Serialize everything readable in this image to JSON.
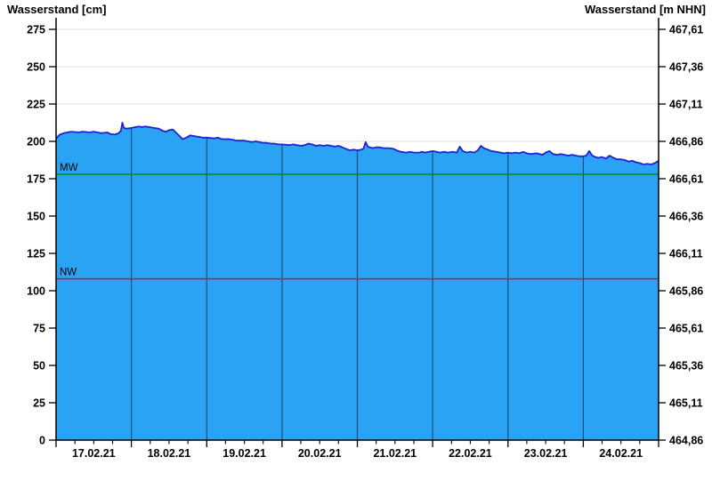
{
  "chart_data": {
    "type": "area",
    "title_left_axis": "Wasserstand [cm]",
    "title_right_axis": "Wasserstand [m NHN]",
    "x_days": 8,
    "x_minor_ticks_per_day": 4,
    "x_tick_labels": [
      "17.02.21",
      "18.02.21",
      "19.02.21",
      "20.02.21",
      "21.02.21",
      "22.02.21",
      "23.02.21",
      "24.02.21"
    ],
    "y_left": {
      "min": 0,
      "max": 275,
      "step": 25,
      "unit": "cm",
      "labels": [
        "0",
        "25",
        "50",
        "75",
        "100",
        "125",
        "150",
        "175",
        "200",
        "225",
        "250",
        "275"
      ]
    },
    "y_right_labels": [
      {
        "cm": 0,
        "label": "464,86"
      },
      {
        "cm": 25,
        "label": "465,11"
      },
      {
        "cm": 50,
        "label": "465,36"
      },
      {
        "cm": 75,
        "label": "465,61"
      },
      {
        "cm": 100,
        "label": "465,86"
      },
      {
        "cm": 125,
        "label": "466,11"
      },
      {
        "cm": 150,
        "label": "466,36"
      },
      {
        "cm": 175,
        "label": "466,61"
      },
      {
        "cm": 200,
        "label": "466,86"
      },
      {
        "cm": 225,
        "label": "467,11"
      },
      {
        "cm": 250,
        "label": "467,36"
      },
      {
        "cm": 275,
        "label": "467,61"
      }
    ],
    "reference_lines": [
      {
        "name": "MW",
        "value_cm": 178,
        "color": "#0a8a0a"
      },
      {
        "name": "NW",
        "value_cm": 108,
        "color": "#dd1111"
      }
    ],
    "colors": {
      "fill": "#2ba3f5",
      "line": "#2121ce",
      "day_gridline": "#1e4e75",
      "h_gridline": "#dcdcdc",
      "axis": "#000000"
    },
    "series": [
      {
        "name": "Wasserstand",
        "points_day_cm": [
          [
            0,
            202
          ],
          [
            0.05,
            204.5
          ],
          [
            0.1,
            205.5
          ],
          [
            0.15,
            206
          ],
          [
            0.2,
            206.5
          ],
          [
            0.3,
            206
          ],
          [
            0.35,
            206.5
          ],
          [
            0.45,
            206
          ],
          [
            0.5,
            206.5
          ],
          [
            0.55,
            206
          ],
          [
            0.6,
            205.5
          ],
          [
            0.68,
            206
          ],
          [
            0.72,
            205
          ],
          [
            0.78,
            204.5
          ],
          [
            0.83,
            205.5
          ],
          [
            0.86,
            207
          ],
          [
            0.88,
            212.5
          ],
          [
            0.9,
            209
          ],
          [
            0.94,
            208.5
          ],
          [
            1,
            209
          ],
          [
            1.05,
            209.5
          ],
          [
            1.1,
            210
          ],
          [
            1.14,
            209.5
          ],
          [
            1.18,
            210
          ],
          [
            1.24,
            209.5
          ],
          [
            1.3,
            209
          ],
          [
            1.36,
            208.5
          ],
          [
            1.42,
            207
          ],
          [
            1.46,
            206.5
          ],
          [
            1.5,
            207.5
          ],
          [
            1.55,
            208
          ],
          [
            1.6,
            205.5
          ],
          [
            1.64,
            203.5
          ],
          [
            1.68,
            201.5
          ],
          [
            1.73,
            202.5
          ],
          [
            1.78,
            204
          ],
          [
            1.84,
            203.5
          ],
          [
            1.9,
            203
          ],
          [
            1.95,
            202.5
          ],
          [
            2,
            202.5
          ],
          [
            2.1,
            202
          ],
          [
            2.15,
            202.5
          ],
          [
            2.2,
            201.5
          ],
          [
            2.3,
            201.5
          ],
          [
            2.35,
            201
          ],
          [
            2.4,
            200.5
          ],
          [
            2.5,
            200.5
          ],
          [
            2.55,
            200
          ],
          [
            2.6,
            199.5
          ],
          [
            2.65,
            200
          ],
          [
            2.7,
            199.5
          ],
          [
            2.75,
            199
          ],
          [
            2.8,
            199
          ],
          [
            2.85,
            198.5
          ],
          [
            2.9,
            198.5
          ],
          [
            2.95,
            198
          ],
          [
            3,
            198
          ],
          [
            3.1,
            197.5
          ],
          [
            3.15,
            198
          ],
          [
            3.2,
            197.5
          ],
          [
            3.25,
            197
          ],
          [
            3.3,
            197.5
          ],
          [
            3.35,
            198.5
          ],
          [
            3.4,
            198
          ],
          [
            3.45,
            197
          ],
          [
            3.5,
            197.5
          ],
          [
            3.55,
            197
          ],
          [
            3.6,
            197.5
          ],
          [
            3.65,
            197
          ],
          [
            3.7,
            196.5
          ],
          [
            3.75,
            197
          ],
          [
            3.8,
            196
          ],
          [
            3.85,
            195
          ],
          [
            3.9,
            194
          ],
          [
            3.95,
            194.5
          ],
          [
            4,
            194
          ],
          [
            4.05,
            194.5
          ],
          [
            4.08,
            195
          ],
          [
            4.11,
            199.5
          ],
          [
            4.14,
            196.5
          ],
          [
            4.2,
            195.5
          ],
          [
            4.25,
            196
          ],
          [
            4.3,
            196
          ],
          [
            4.35,
            195.5
          ],
          [
            4.42,
            195.5
          ],
          [
            4.48,
            195
          ],
          [
            4.52,
            194
          ],
          [
            4.58,
            193
          ],
          [
            4.65,
            192.5
          ],
          [
            4.7,
            193
          ],
          [
            4.75,
            192.5
          ],
          [
            4.82,
            192.5
          ],
          [
            4.86,
            193
          ],
          [
            4.9,
            192.5
          ],
          [
            4.95,
            193
          ],
          [
            5,
            193.5
          ],
          [
            5.05,
            193
          ],
          [
            5.1,
            192.5
          ],
          [
            5.15,
            193
          ],
          [
            5.2,
            192.5
          ],
          [
            5.27,
            193
          ],
          [
            5.32,
            192.5
          ],
          [
            5.36,
            196.5
          ],
          [
            5.4,
            193.5
          ],
          [
            5.45,
            192.5
          ],
          [
            5.5,
            193
          ],
          [
            5.55,
            192.5
          ],
          [
            5.6,
            194
          ],
          [
            5.64,
            197
          ],
          [
            5.68,
            195.5
          ],
          [
            5.73,
            194.5
          ],
          [
            5.78,
            193.5
          ],
          [
            5.85,
            193
          ],
          [
            5.9,
            192.5
          ],
          [
            5.95,
            192
          ],
          [
            6,
            192.5
          ],
          [
            6.05,
            192
          ],
          [
            6.1,
            192.5
          ],
          [
            6.15,
            192
          ],
          [
            6.2,
            193
          ],
          [
            6.25,
            192
          ],
          [
            6.3,
            191.5
          ],
          [
            6.38,
            192
          ],
          [
            6.42,
            191.5
          ],
          [
            6.46,
            191
          ],
          [
            6.5,
            192.5
          ],
          [
            6.55,
            193.5
          ],
          [
            6.6,
            191.5
          ],
          [
            6.65,
            191
          ],
          [
            6.7,
            191.5
          ],
          [
            6.75,
            191
          ],
          [
            6.8,
            190.5
          ],
          [
            6.85,
            191
          ],
          [
            6.9,
            190.5
          ],
          [
            6.95,
            190
          ],
          [
            7,
            190
          ],
          [
            7.04,
            190.5
          ],
          [
            7.08,
            193.5
          ],
          [
            7.12,
            190.5
          ],
          [
            7.16,
            189.5
          ],
          [
            7.2,
            189
          ],
          [
            7.25,
            189.5
          ],
          [
            7.3,
            188.5
          ],
          [
            7.35,
            190.5
          ],
          [
            7.4,
            189
          ],
          [
            7.45,
            188
          ],
          [
            7.5,
            188
          ],
          [
            7.55,
            187.5
          ],
          [
            7.6,
            186.5
          ],
          [
            7.65,
            187
          ],
          [
            7.7,
            186
          ],
          [
            7.75,
            185.5
          ],
          [
            7.8,
            184.5
          ],
          [
            7.85,
            185
          ],
          [
            7.9,
            184.5
          ],
          [
            7.95,
            185.5
          ],
          [
            8,
            187
          ]
        ]
      }
    ]
  }
}
